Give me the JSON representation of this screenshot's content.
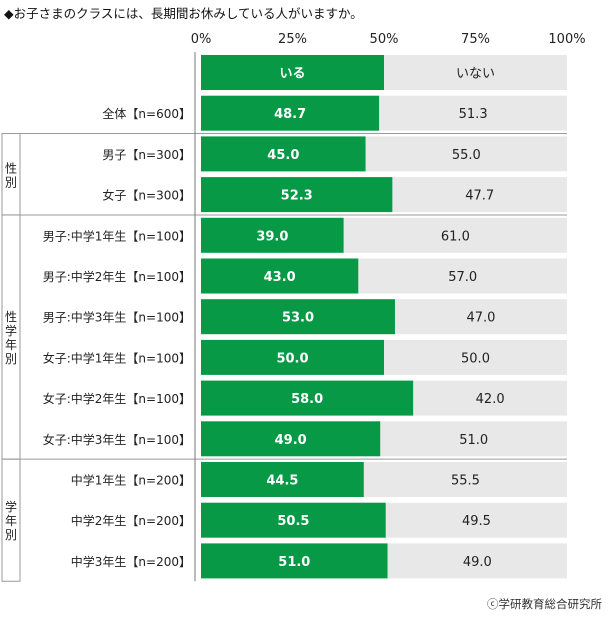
{
  "chart_data": {
    "type": "bar",
    "orientation": "horizontal",
    "stacked": "100%",
    "title": "◆お子さまのクラスには、長期間お休みしている人がいますか。",
    "x_ticks": [
      "0%",
      "25%",
      "50%",
      "75%",
      "100%"
    ],
    "xlim": [
      0,
      100
    ],
    "series": [
      {
        "name": "いる",
        "color": "#079946"
      },
      {
        "name": "いない",
        "color": "#e8e8e8"
      }
    ],
    "groups": [
      {
        "label": "",
        "rows": [
          {
            "label": "全体【n=600】",
            "values": [
              48.7,
              51.3
            ],
            "value_labels": [
              "48.7",
              "51.3"
            ]
          }
        ]
      },
      {
        "label": "性別",
        "rows": [
          {
            "label": "男子【n=300】",
            "values": [
              45.0,
              55.0
            ],
            "value_labels": [
              "45.0",
              "55.0"
            ]
          },
          {
            "label": "女子【n=300】",
            "values": [
              52.3,
              47.7
            ],
            "value_labels": [
              "52.3",
              "47.7"
            ]
          }
        ]
      },
      {
        "label": "性学年別",
        "rows": [
          {
            "label": "男子:中学1年生【n=100】",
            "values": [
              39.0,
              61.0
            ],
            "value_labels": [
              "39.0",
              "61.0"
            ]
          },
          {
            "label": "男子:中学2年生【n=100】",
            "values": [
              43.0,
              57.0
            ],
            "value_labels": [
              "43.0",
              "57.0"
            ]
          },
          {
            "label": "男子:中学3年生【n=100】",
            "values": [
              53.0,
              47.0
            ],
            "value_labels": [
              "53.0",
              "47.0"
            ]
          },
          {
            "label": "女子:中学1年生【n=100】",
            "values": [
              50.0,
              50.0
            ],
            "value_labels": [
              "50.0",
              "50.0"
            ]
          },
          {
            "label": "女子:中学2年生【n=100】",
            "values": [
              58.0,
              42.0
            ],
            "value_labels": [
              "58.0",
              "42.0"
            ]
          },
          {
            "label": "女子:中学3年生【n=100】",
            "values": [
              49.0,
              51.0
            ],
            "value_labels": [
              "49.0",
              "51.0"
            ]
          }
        ]
      },
      {
        "label": "学年別",
        "rows": [
          {
            "label": "中学1年生【n=200】",
            "values": [
              44.5,
              55.5
            ],
            "value_labels": [
              "44.5",
              "55.5"
            ]
          },
          {
            "label": "中学2年生【n=200】",
            "values": [
              50.5,
              49.5
            ],
            "value_labels": [
              "50.5",
              "49.5"
            ]
          },
          {
            "label": "中学3年生【n=200】",
            "values": [
              51.0,
              49.0
            ],
            "value_labels": [
              "51.0",
              "49.0"
            ]
          }
        ]
      }
    ],
    "legend": "top-row",
    "grid": false
  },
  "credit": "ⓒ学研教育総合研究所"
}
